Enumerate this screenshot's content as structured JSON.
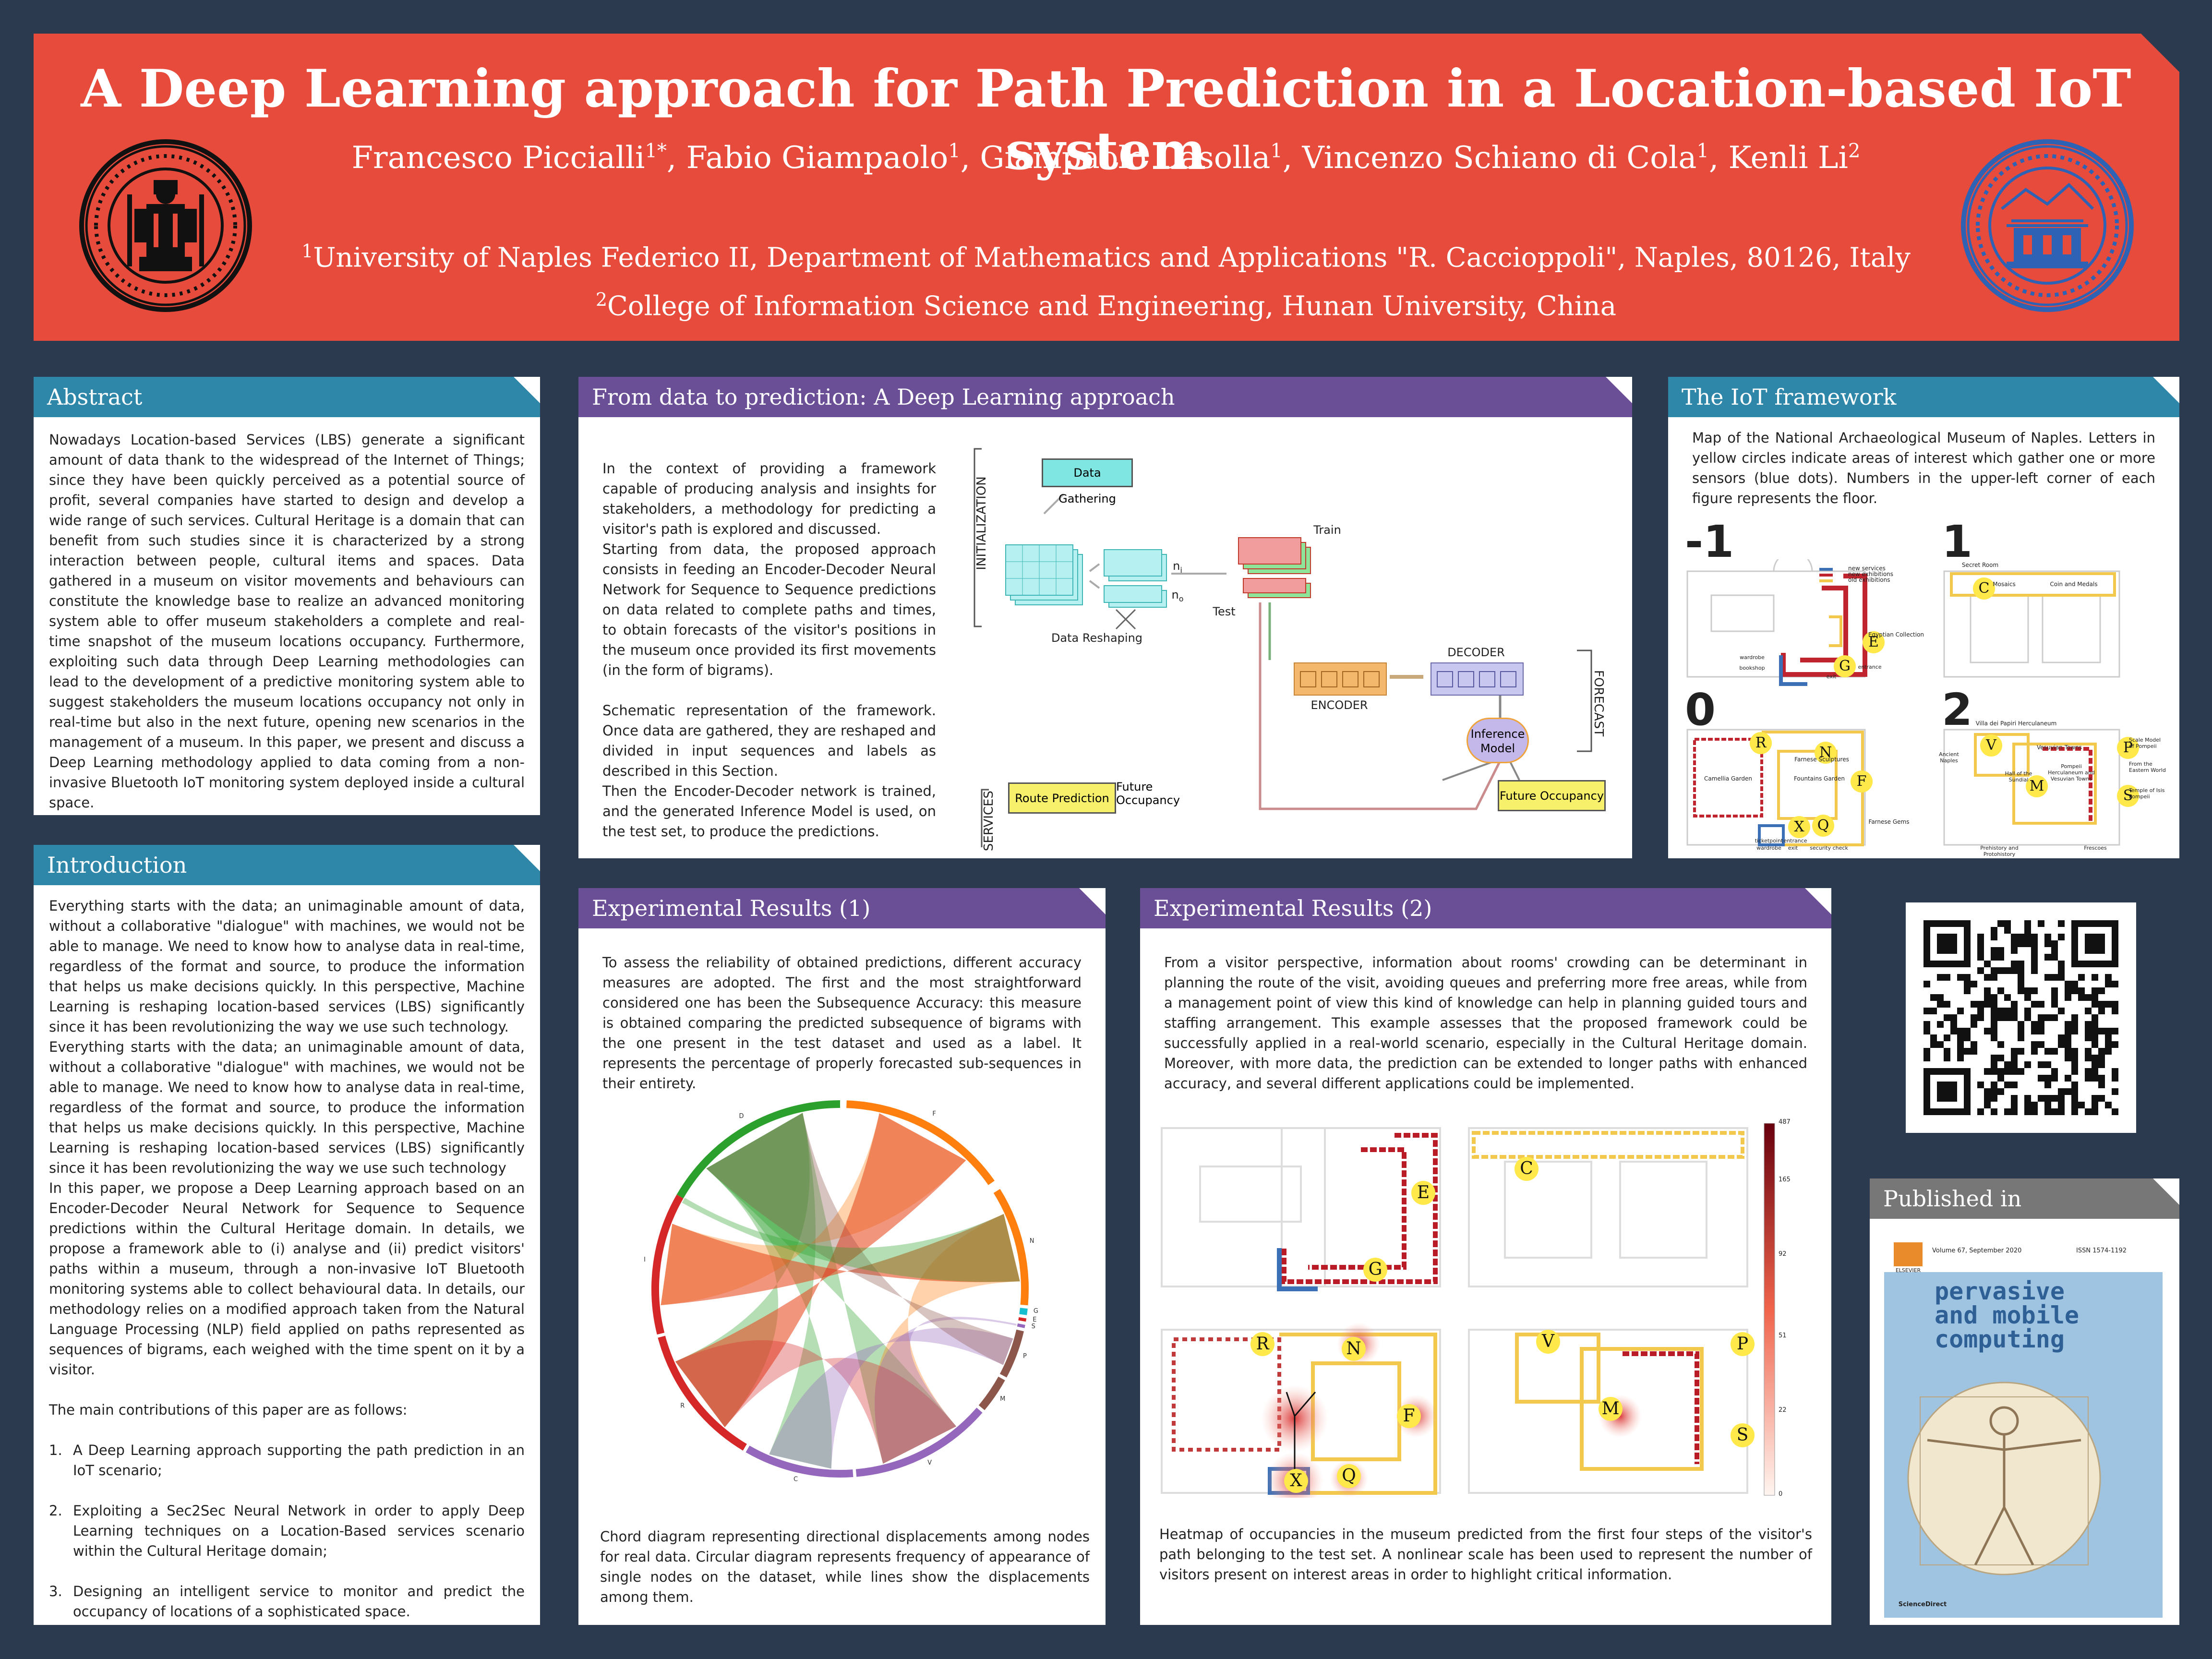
{
  "header": {
    "title": "A Deep Learning approach for Path Prediction in a Location-based IoT system",
    "authors": [
      {
        "name": "Francesco Piccialli",
        "sup": "1*"
      },
      {
        "name": "Fabio Giampaolo",
        "sup": "1"
      },
      {
        "name": "Giampaolo Casolla",
        "sup": "1"
      },
      {
        "name": "Vincenzo Schiano di Cola",
        "sup": "1"
      },
      {
        "name": "Kenli Li",
        "sup": "2"
      }
    ],
    "affiliations": [
      {
        "sup": "1",
        "text": "University of Naples Federico II, Department of Mathematics and Applications \"R. Caccioppoli\", Naples, 80126, Italy"
      },
      {
        "sup": "2",
        "text": "College of Information Science and Engineering, Hunan University, China"
      }
    ],
    "left_seal": "university-of-naples-seal",
    "right_seal": "hunan-university-seal"
  },
  "abstract": {
    "heading": "Abstract",
    "text": "Nowadays Location-based Services (LBS) generate a significant amount of data thank to the widespread of the Internet of Things; since they have been quickly perceived as a potential source of profit, several companies have started to design and develop a wide range of such services. Cultural Heritage is a domain that can benefit from such studies since it is characterized by a strong interaction between people, cultural items and spaces. Data gathered in a museum on visitor movements and behaviours can constitute the knowledge base to realize an advanced monitoring system able to offer museum stakeholders a complete and real-time snapshot of the museum locations occupancy. Furthermore, exploiting such data through Deep Learning methodologies can lead to the development of a predictive monitoring system able to suggest stakeholders the museum locations occupancy not only in real-time but also in the next future, opening new scenarios in the management of a museum. In this paper, we present and discuss a Deep Learning methodology applied to data coming from a non-invasive Bluetooth IoT monitoring system deployed inside a cultural space."
  },
  "introduction": {
    "heading": "Introduction",
    "para1": "Everything starts with the data; an unimaginable amount of data, without a collaborative \"dialogue\" with machines, we would not be able to manage. We need to know how to analyse data in real-time, regardless of the format and source, to produce the information that helps us make decisions quickly. In this perspective, Machine Learning is reshaping location-based services (LBS) significantly since it has been revolutionizing the way we use such technology.",
    "para2": "Everything starts with the data; an unimaginable amount of data, without a collaborative \"dialogue\" with machines, we would not be able to manage. We need to know how to analyse data in real-time, regardless of the format and source, to produce the information that helps us make decisions quickly. In this perspective, Machine Learning is reshaping location-based services (LBS) significantly since it has been revolutionizing the way we use such technology",
    "para3": "In this paper, we propose a Deep Learning approach based on an Encoder-Decoder Neural Network for Sequence to Sequence predictions within the Cultural Heritage domain. In details, we propose a framework able to (i) analyse and (ii) predict visitors' paths within a museum, through a non-invasive IoT Bluetooth monitoring systems able to collect behavioural data. In details, our methodology relies on a modified approach taken from the Natural Language Processing (NLP) field applied on paths represented as sequences of bigrams, each weighed with the time spent on it by a visitor.",
    "para4": "The main contributions of this paper are as follows:",
    "contributions": [
      {
        "num": "1.",
        "text": "A Deep Learning approach supporting the path prediction in an IoT scenario;"
      },
      {
        "num": "2.",
        "text": "Exploiting a Sec2Sec Neural Network in order to apply Deep Learning techniques on a Location-Based services scenario within the Cultural Heritage domain;"
      },
      {
        "num": "3.",
        "text": "Designing an intelligent service to monitor and predict the occupancy of locations of a sophisticated space."
      }
    ]
  },
  "method": {
    "heading": "From data to prediction: A Deep Learning approach",
    "para1": "In the context of providing a framework capable of producing analysis and insights for stakeholders, a methodology for predicting a visitor's path is explored and discussed.",
    "para2": " Starting from data, the proposed approach consists in feeding an Encoder-Decoder Neural Network for Sequence to Sequence predictions on data related to complete paths and times, to obtain forecasts of the visitor's positions in the museum once provided its first movements (in the form of bigrams).",
    "para3": "Schematic representation of the framework. Once data are gathered, they are reshaped and divided in input sequences and labels as described in this Section.",
    "para4": "Then the Encoder-Decoder network is trained, and the generated Inference Model is used, on the test set, to produce the predictions.",
    "diagram": {
      "initialization": "INITIALIZATION",
      "data_gathering": "Data Gathering",
      "data_reshaping": "Data Reshaping",
      "n_i": "n",
      "n_i_sub": "i",
      "n_o": "n",
      "n_o_sub": "o",
      "train": "Train",
      "test": "Test",
      "encoder": "ENCODER",
      "decoder": "DECODER",
      "inference1": "Inference",
      "inference2": "Model",
      "forecast": "FORECAST",
      "services": "SERVICES",
      "route_prediction": "Route Prediction",
      "future_occupancy": "Future Occupancy"
    }
  },
  "iot": {
    "heading": "The IoT framework",
    "text": "Map of the National Archaeological Museum of Naples. Letters in yellow circles indicate areas of interest which gather one or more sensors (blue dots). Numbers in the upper-left corner of each figure represents the floor.",
    "floors": [
      "-1",
      "1",
      "0",
      "2"
    ],
    "legend": [
      "new services",
      "new exhibitions",
      "old exhibitions"
    ],
    "legend_colors": [
      "#3b6fb6",
      "#c0252f",
      "#f2c94c"
    ],
    "labels_m1": {
      "e": "E",
      "g": "G",
      "egypt": "Egyptian Collection",
      "ws": "wardrobe",
      "bs": "bookshop",
      "exit": "exit",
      "ent": "entrance"
    },
    "labels_1": {
      "c": "C",
      "secret": "Secret Room",
      "mosaics": "Mosaics",
      "coin": "Coin and Medals"
    },
    "labels_0": {
      "r": "R",
      "n": "N",
      "f": "F",
      "x": "X",
      "q": "Q",
      "camellia": "Camellia Garden",
      "fountains": "Fountains Garden",
      "farnese_s": "Farnese Sculptures",
      "farnese_g": "Farnese Gems",
      "tp": "ticketpoint",
      "wr": "wardrobe",
      "ent": "entrance",
      "exit": "exit",
      "sc": "security check"
    },
    "labels_2": {
      "v": "V",
      "m": "M",
      "p": "P",
      "s": "S",
      "villa": "Villa dei Papiri Herculaneum",
      "vesuvian": "Vesuvian Towns",
      "pompeii": "Pompeii Herculaneum and Vesuvian Towns",
      "sundial": "Hall of the Sundial",
      "scale": "Scale Model of Pompeii",
      "eastern": "From the Eastern World",
      "temple": "Temple of Isis Pompeii",
      "ancient": "Ancient Naples",
      "prehistory": "Prehistory and Protohistory",
      "frescoes": "Frescoes"
    }
  },
  "results1": {
    "heading": "Experimental Results (1)",
    "text": "To assess the reliability of obtained predictions, different accuracy measures are adopted. The first and the most straightforward considered one has been the Subsequence Accuracy: this measure is obtained comparing the predicted subsequence of bigrams with the one present in the test dataset and used as a label. It represents the percentage of properly forecasted sub-sequences in their entirety.",
    "caption": "Chord diagram representing directional displacements among nodes for real data. Circular diagram represents frequency of appearance of single nodes on the dataset, while lines show the displacements among them.",
    "nodes": [
      {
        "label": "D",
        "color": "#2ca02c"
      },
      {
        "label": "F",
        "color": "#ff7f0e"
      },
      {
        "label": "N",
        "color": "#ff7f0e"
      },
      {
        "label": "G",
        "color": "#17becf"
      },
      {
        "label": "E",
        "color": "#d62728"
      },
      {
        "label": "S",
        "color": "#9467bd"
      },
      {
        "label": "P",
        "color": "#8c564b"
      },
      {
        "label": "M",
        "color": "#8c564b"
      },
      {
        "label": "V",
        "color": "#9467bd"
      },
      {
        "label": "C",
        "color": "#9467bd"
      },
      {
        "label": "R",
        "color": "#d62728"
      },
      {
        "label": "I",
        "color": "#d62728"
      },
      {
        "label": "K",
        "color": "#2ca02c"
      }
    ]
  },
  "results2": {
    "heading": "Experimental Results (2)",
    "text": "From a visitor perspective, information about rooms' crowding can be determinant in planning the route of the visit, avoiding queues and preferring more free areas, while from a management point of view this kind of knowledge can help in planning guided tours and staffing arrangement. This example assesses that the proposed framework could be successfully applied in a real-world scenario, especially in the Cultural Heritage domain. Moreover, with more data, the prediction can be extended to longer paths with enhanced accuracy, and several different applications could be implemented.",
    "caption": "Heatmap of occupancies in the museum predicted from the first four steps of the visitor's path belonging to the test set. A nonlinear scale has been used to represent the number of visitors present on interest areas in order to highlight critical information.",
    "colorbar_ticks": [
      "487",
      "165",
      "92",
      "51",
      "22",
      "0"
    ],
    "map_letters": [
      "E",
      "G",
      "C",
      "R",
      "N",
      "F",
      "X",
      "Q",
      "V",
      "P",
      "M",
      "S"
    ]
  },
  "qr": {
    "name": "qr-code"
  },
  "published": {
    "heading": "Published in",
    "journal_line1": "pervasive",
    "journal_line2": "and mobile",
    "journal_line3": "computing",
    "volume": "Volume 67, September 2020",
    "issn": "ISSN 1574-1192",
    "publisher": "ELSEVIER",
    "sciencedirect": "ScienceDirect"
  }
}
